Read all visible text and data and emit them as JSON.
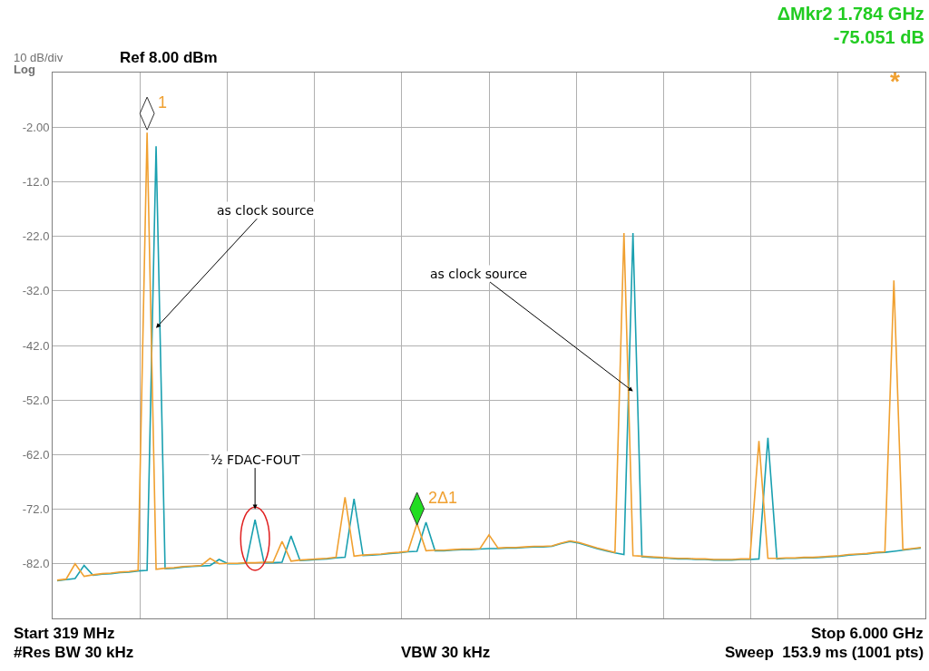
{
  "chart_data": {
    "type": "line",
    "title": "ΔMkr2 1.784 GHz",
    "subtitle": "-75.051 dB",
    "categories": [
      null,
      null,
      null,
      null,
      null,
      null,
      null,
      null,
      null,
      null,
      null,
      null,
      null,
      null,
      null,
      null,
      null,
      null,
      null,
      null,
      null,
      null,
      null,
      null,
      null,
      null,
      null,
      null,
      null,
      null,
      null,
      null,
      null,
      null,
      null,
      null,
      null,
      null,
      null,
      null,
      null,
      null,
      null,
      null,
      null,
      null,
      null,
      null,
      null,
      null,
      null,
      null,
      null,
      null,
      null,
      null,
      null,
      null,
      null,
      null,
      null,
      null,
      null,
      null,
      null,
      null,
      null,
      null,
      null,
      null,
      null,
      null,
      null,
      null,
      null,
      null,
      null,
      null,
      null,
      null,
      null,
      null,
      null,
      null,
      null,
      null,
      null,
      null,
      null,
      null,
      null,
      null,
      null,
      null,
      null,
      null,
      null
    ],
    "series": [
      {
        "color": "#1aa0b0",
        "values": [
          -85.1,
          -84.9,
          -84.7,
          -82.3,
          -84.1,
          -83.9,
          -83.8,
          -83.6,
          -83.5,
          -83.3,
          -83.2,
          -5.5,
          -82.9,
          -82.8,
          -82.6,
          -82.5,
          -82.4,
          -82.3,
          -81.2,
          -82.0,
          -82.0,
          -81.9,
          -73.9,
          -81.8,
          -81.8,
          -81.7,
          -76.9,
          -81.4,
          -81.3,
          -81.2,
          -81.1,
          -80.9,
          -80.8,
          -70.1,
          -80.5,
          -80.4,
          -80.3,
          -80.1,
          -80.0,
          -79.8,
          -79.7,
          -74.4,
          -79.6,
          -79.6,
          -79.5,
          -79.4,
          -79.4,
          -79.3,
          -79.2,
          -79.2,
          -79.1,
          -79.1,
          -79.0,
          -78.9,
          -78.9,
          -78.8,
          -78.3,
          -77.9,
          -78.2,
          -78.7,
          -79.2,
          -79.6,
          -80.0,
          -80.3,
          -21.4,
          -80.7,
          -80.8,
          -80.9,
          -81.0,
          -81.1,
          -81.1,
          -81.2,
          -81.2,
          -81.3,
          -81.3,
          -81.3,
          -81.2,
          -81.2,
          -81.1,
          -58.9,
          -81.1,
          -81.0,
          -81.0,
          -80.9,
          -80.9,
          -80.8,
          -80.7,
          -80.6,
          -80.4,
          -80.3,
          -80.2,
          -80.0,
          -79.9,
          -79.7,
          -79.5,
          -79.3,
          -79.1
        ]
      },
      {
        "color": "#f0a030",
        "values": [
          -85.0,
          -84.8,
          -82.0,
          -84.3,
          -84.0,
          -83.8,
          -83.7,
          -83.5,
          -83.4,
          -83.2,
          -3.0,
          -83.0,
          -82.8,
          -82.7,
          -82.5,
          -82.4,
          -82.3,
          -81.0,
          -82.0,
          -81.9,
          -81.9,
          -81.8,
          -81.8,
          -81.7,
          -81.7,
          -77.9,
          -81.5,
          -81.3,
          -81.2,
          -81.1,
          -81.0,
          -80.8,
          -69.8,
          -80.6,
          -80.4,
          -80.3,
          -80.2,
          -80.0,
          -79.9,
          -79.7,
          -74.6,
          -79.6,
          -79.5,
          -79.5,
          -79.4,
          -79.3,
          -79.3,
          -79.2,
          -76.7,
          -79.1,
          -79.0,
          -79.0,
          -78.9,
          -78.8,
          -78.8,
          -78.7,
          -78.2,
          -77.8,
          -78.1,
          -78.6,
          -79.1,
          -79.5,
          -79.9,
          -21.4,
          -80.5,
          -80.6,
          -80.7,
          -80.8,
          -80.9,
          -81.0,
          -81.0,
          -81.1,
          -81.1,
          -81.2,
          -81.2,
          -81.2,
          -81.1,
          -81.1,
          -59.5,
          -81.0,
          -81.0,
          -80.9,
          -80.9,
          -80.8,
          -80.8,
          -80.7,
          -80.6,
          -80.5,
          -80.3,
          -80.2,
          -80.1,
          -79.9,
          -79.8,
          -30.1,
          -79.4,
          -79.2,
          -79.0
        ]
      }
    ],
    "ylim": [
      -92,
      8
    ],
    "yticks": [
      {
        "value": -2,
        "label": "-2.00"
      },
      {
        "value": -12,
        "label": "-12.0"
      },
      {
        "value": -22,
        "label": "-22.0"
      },
      {
        "value": -32,
        "label": "-32.0"
      },
      {
        "value": -42,
        "label": "-42.0"
      },
      {
        "value": -52,
        "label": "-52.0"
      },
      {
        "value": -62,
        "label": "-62.0"
      },
      {
        "value": -72,
        "label": "-72.0"
      },
      {
        "value": -82,
        "label": "-82.0"
      }
    ],
    "grid": true,
    "line_style": "solid",
    "annotations": [
      "as clock source",
      "as clock source",
      "½ FDAC-FOUT",
      "1",
      "2Δ1",
      "*",
      "10 dB/div",
      "Log",
      "Ref 8.00 dBm",
      "Start 319 MHz",
      "Stop 6.000 GHz",
      "#Res BW 30 kHz",
      "VBW 30 kHz",
      "Sweep  153.9 ms (1001 pts)"
    ]
  }
}
